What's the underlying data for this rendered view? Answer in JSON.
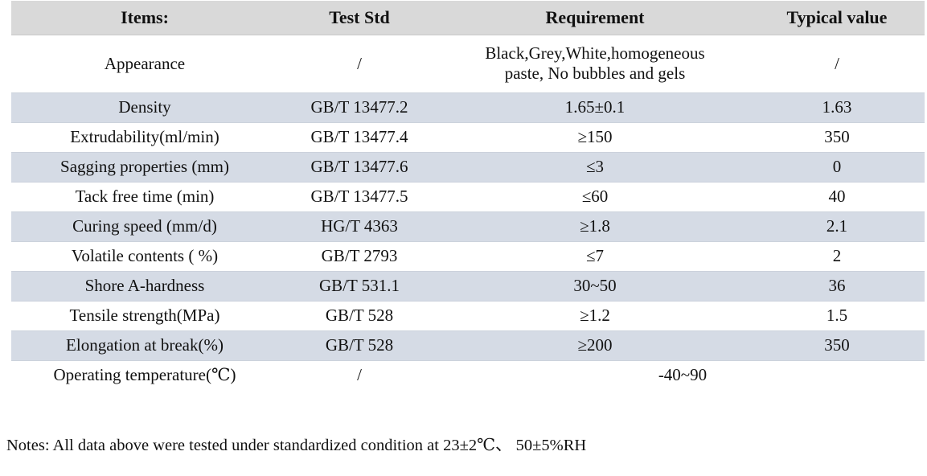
{
  "table": {
    "headers": {
      "items": "Items:",
      "test_std": "Test Std",
      "requirement": "Requirement",
      "typical": "Typical value"
    },
    "rows": [
      {
        "item": "Appearance",
        "test_std": "/",
        "requirement": "Black,Grey,White,homogeneous\npaste, No bubbles and gels",
        "typical": "/"
      },
      {
        "item": "Density",
        "test_std": "GB/T 13477.2",
        "requirement": "1.65±0.1",
        "typical": "1.63"
      },
      {
        "item": "Extrudability(ml/min)",
        "test_std": "GB/T 13477.4",
        "requirement": "≥150",
        "typical": "350"
      },
      {
        "item": "Sagging properties (mm)",
        "test_std": "GB/T 13477.6",
        "requirement": "≤3",
        "typical": "0"
      },
      {
        "item": "Tack free time (min)",
        "test_std": "GB/T 13477.5",
        "requirement": "≤60",
        "typical": "40"
      },
      {
        "item": "Curing speed (mm/d)",
        "test_std": "HG/T 4363",
        "requirement": "≥1.8",
        "typical": "2.1"
      },
      {
        "item": "Volatile contents ( %)",
        "test_std": "GB/T 2793",
        "requirement": "≤7",
        "typical": "2"
      },
      {
        "item": "Shore A-hardness",
        "test_std": "GB/T 531.1",
        "requirement": "30~50",
        "typical": "36"
      },
      {
        "item": "Tensile strength(MPa)",
        "test_std": "GB/T 528",
        "requirement": "≥1.2",
        "typical": "1.5"
      },
      {
        "item": "Elongation at break(%)",
        "test_std": "GB/T 528",
        "requirement": "≥200",
        "typical": "350"
      },
      {
        "item": "Operating temperature(℃)",
        "test_std": "/",
        "requirement_merged": "-40~90"
      }
    ]
  },
  "notes": "Notes: All data above were tested under standardized condition at 23±2℃、 50±5%RH",
  "colors": {
    "header_bg": "#d9d9d9",
    "stripe_bg": "#d5dbe5",
    "text": "#111111",
    "page_bg": "#ffffff"
  }
}
